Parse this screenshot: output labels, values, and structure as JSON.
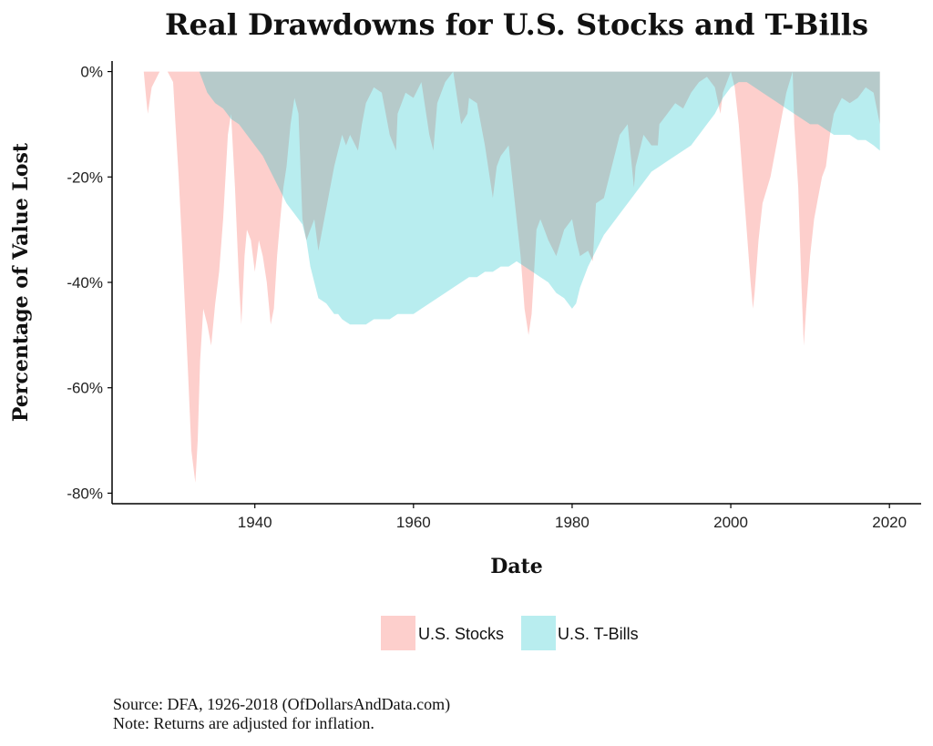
{
  "chart_data": {
    "type": "area",
    "title": "Real Drawdowns for U.S. Stocks and T-Bills",
    "xlabel": "Date",
    "ylabel": "Percentage of Value Lost",
    "xlim": [
      1922,
      2024
    ],
    "ylim": [
      -82,
      2
    ],
    "x_ticks": [
      1940,
      1960,
      1980,
      2000,
      2020
    ],
    "y_ticks": [
      0,
      -20,
      -40,
      -60,
      -80
    ],
    "y_tick_labels": [
      "0%",
      "-20%",
      "-40%",
      "-60%",
      "-80%"
    ],
    "grid": false,
    "legend_position": "bottom",
    "series": [
      {
        "name": "U.S. Stocks",
        "color": "#f8766d",
        "x": [
          1926.0,
          1926.3,
          1926.5,
          1927.0,
          1928.0,
          1929.0,
          1929.7,
          1930.0,
          1930.4,
          1930.8,
          1931.2,
          1931.6,
          1932.0,
          1932.5,
          1932.8,
          1933.1,
          1933.5,
          1934.0,
          1934.5,
          1935.0,
          1935.5,
          1936.0,
          1936.6,
          1937.0,
          1937.5,
          1938.0,
          1938.3,
          1938.7,
          1939.0,
          1939.5,
          1940.0,
          1940.5,
          1941.0,
          1941.5,
          1942.0,
          1942.4,
          1942.8,
          1943.2,
          1943.6,
          1944.0,
          1944.5,
          1945.0,
          1945.5,
          1946.0,
          1946.5,
          1947.0,
          1947.5,
          1948.0,
          1948.5,
          1949.0,
          1949.5,
          1950.0,
          1950.5,
          1951.0,
          1951.5,
          1952.0,
          1953.0,
          1953.5,
          1954.0,
          1955.0,
          1956.0,
          1956.5,
          1957.0,
          1957.8,
          1958.0,
          1959.0,
          1960.0,
          1961.0,
          1962.0,
          1962.5,
          1963.0,
          1964.0,
          1965.0,
          1966.0,
          1966.8,
          1967.0,
          1968.0,
          1969.0,
          1970.0,
          1970.5,
          1971.0,
          1972.0,
          1973.0,
          1973.5,
          1974.0,
          1974.5,
          1974.9,
          1975.2,
          1975.5,
          1976.0,
          1977.0,
          1978.0,
          1979.0,
          1980.0,
          1980.5,
          1981.0,
          1982.0,
          1982.6,
          1983.0,
          1984.0,
          1985.0,
          1986.0,
          1987.0,
          1987.8,
          1988.0,
          1989.0,
          1990.0,
          1990.8,
          1991.0,
          1992.0,
          1993.0,
          1994.0,
          1995.0,
          1996.0,
          1997.0,
          1998.0,
          1998.7,
          1999.0,
          2000.0,
          2000.5,
          2001.0,
          2001.5,
          2002.0,
          2002.5,
          2002.8,
          2003.0,
          2003.5,
          2004.0,
          2005.0,
          2006.0,
          2007.0,
          2007.8,
          2008.0,
          2008.5,
          2008.9,
          2009.2,
          2009.5,
          2010.0,
          2010.5,
          2011.0,
          2011.5,
          2012.0,
          2012.5,
          2013.0,
          2014.0,
          2015.0,
          2016.0,
          2017.0,
          2018.0,
          2018.8
        ],
        "values": [
          0,
          -5,
          -8,
          -3,
          0,
          0,
          -2,
          -10,
          -20,
          -32,
          -45,
          -58,
          -72,
          -78,
          -70,
          -55,
          -45,
          -48,
          -52,
          -44,
          -38,
          -28,
          -12,
          -8,
          -22,
          -40,
          -48,
          -35,
          -30,
          -32,
          -38,
          -32,
          -35,
          -40,
          -48,
          -45,
          -35,
          -28,
          -22,
          -18,
          -10,
          -5,
          -8,
          -28,
          -32,
          -30,
          -28,
          -34,
          -30,
          -26,
          -22,
          -18,
          -15,
          -12,
          -14,
          -12,
          -15,
          -10,
          -6,
          -3,
          -4,
          -8,
          -12,
          -15,
          -8,
          -4,
          -5,
          -2,
          -12,
          -15,
          -6,
          -2,
          0,
          -10,
          -8,
          -5,
          -6,
          -14,
          -24,
          -18,
          -16,
          -14,
          -28,
          -35,
          -45,
          -50,
          -46,
          -38,
          -30,
          -28,
          -32,
          -35,
          -30,
          -28,
          -32,
          -35,
          -34,
          -36,
          -25,
          -24,
          -18,
          -12,
          -10,
          -22,
          -18,
          -12,
          -14,
          -14,
          -10,
          -8,
          -6,
          -7,
          -4,
          -2,
          -1,
          -3,
          -8,
          -4,
          0,
          -3,
          -10,
          -20,
          -30,
          -40,
          -45,
          -42,
          -32,
          -25,
          -20,
          -12,
          -4,
          0,
          -10,
          -22,
          -40,
          -52,
          -45,
          -35,
          -28,
          -24,
          -20,
          -18,
          -12,
          -8,
          -5,
          -6,
          -5,
          -3,
          -4,
          -10
        ]
      },
      {
        "name": "U.S. T-Bills",
        "color": "#00bfc4",
        "x": [
          1926.0,
          1927.0,
          1928.0,
          1929.0,
          1930.0,
          1931.0,
          1932.0,
          1933.0,
          1933.5,
          1934.0,
          1935.0,
          1936.0,
          1937.0,
          1938.0,
          1939.0,
          1940.0,
          1941.0,
          1942.0,
          1943.0,
          1944.0,
          1945.0,
          1946.0,
          1946.5,
          1947.0,
          1947.5,
          1948.0,
          1949.0,
          1950.0,
          1950.5,
          1951.0,
          1952.0,
          1953.0,
          1954.0,
          1955.0,
          1956.0,
          1957.0,
          1958.0,
          1959.0,
          1960.0,
          1961.0,
          1962.0,
          1963.0,
          1964.0,
          1965.0,
          1966.0,
          1967.0,
          1968.0,
          1969.0,
          1970.0,
          1971.0,
          1972.0,
          1973.0,
          1974.0,
          1975.0,
          1976.0,
          1977.0,
          1978.0,
          1979.0,
          1980.0,
          1980.5,
          1981.0,
          1982.0,
          1983.0,
          1984.0,
          1985.0,
          1986.0,
          1987.0,
          1988.0,
          1989.0,
          1990.0,
          1991.0,
          1992.0,
          1993.0,
          1994.0,
          1995.0,
          1996.0,
          1997.0,
          1998.0,
          1999.0,
          2000.0,
          2001.0,
          2002.0,
          2003.0,
          2004.0,
          2005.0,
          2006.0,
          2007.0,
          2008.0,
          2009.0,
          2010.0,
          2011.0,
          2012.0,
          2013.0,
          2014.0,
          2015.0,
          2016.0,
          2017.0,
          2018.0,
          2018.8
        ],
        "values": [
          0,
          0,
          0,
          0,
          0,
          0,
          0,
          0,
          -2,
          -4,
          -6,
          -7,
          -9,
          -10,
          -12,
          -14,
          -16,
          -19,
          -22,
          -25,
          -27,
          -29,
          -32,
          -37,
          -40,
          -43,
          -44,
          -46,
          -46,
          -47,
          -48,
          -48,
          -48,
          -47,
          -47,
          -47,
          -46,
          -46,
          -46,
          -45,
          -44,
          -43,
          -42,
          -41,
          -40,
          -39,
          -39,
          -38,
          -38,
          -37,
          -37,
          -36,
          -37,
          -38,
          -39,
          -40,
          -42,
          -43,
          -45,
          -44,
          -41,
          -37,
          -34,
          -31,
          -29,
          -27,
          -25,
          -23,
          -21,
          -19,
          -18,
          -17,
          -16,
          -15,
          -14,
          -12,
          -10,
          -8,
          -5,
          -3,
          -2,
          -2,
          -3,
          -4,
          -5,
          -6,
          -7,
          -8,
          -9,
          -10,
          -10,
          -11,
          -12,
          -12,
          -12,
          -13,
          -13,
          -14,
          -15
        ]
      }
    ]
  },
  "legend": {
    "stocks_label": "U.S. Stocks",
    "tbills_label": "U.S. T-Bills"
  },
  "footnotes": {
    "source": "Source:  DFA, 1926-2018 (OfDollarsAndData.com)",
    "note": "Note: Returns are adjusted for inflation."
  }
}
